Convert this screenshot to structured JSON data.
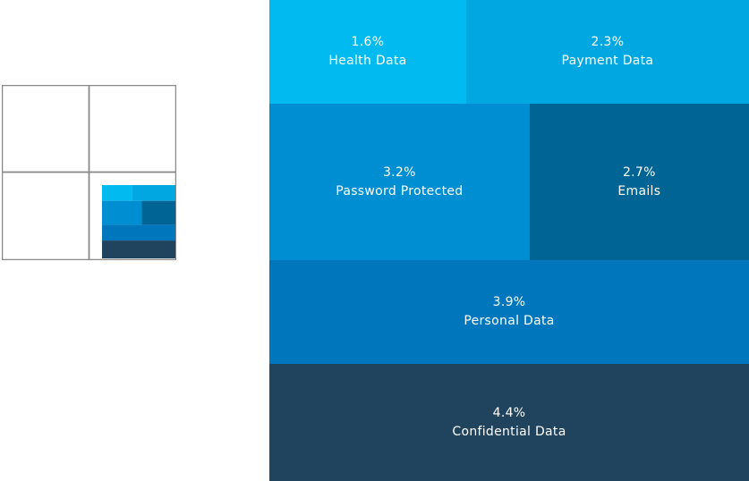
{
  "chart_data": {
    "type": "treemap",
    "cells": [
      {
        "key": "health",
        "label": "Health Data",
        "value": 1.6,
        "value_label": "1.6%",
        "color": "#00baf0"
      },
      {
        "key": "payment",
        "label": "Payment Data",
        "value": 2.3,
        "value_label": "2.3%",
        "color": "#00a7e1"
      },
      {
        "key": "password",
        "label": "Password Protected",
        "value": 3.2,
        "value_label": "3.2%",
        "color": "#008ed3"
      },
      {
        "key": "emails",
        "label": "Emails",
        "value": 2.7,
        "value_label": "2.7%",
        "color": "#006494"
      },
      {
        "key": "personal",
        "label": "Personal Data",
        "value": 3.9,
        "value_label": "3.9%",
        "color": "#0077bd"
      },
      {
        "key": "confidential",
        "label": "Confidential Data",
        "value": 4.4,
        "value_label": "4.4%",
        "color": "#21445e"
      }
    ]
  },
  "thumbnail": {
    "grid_color": "#888888"
  }
}
